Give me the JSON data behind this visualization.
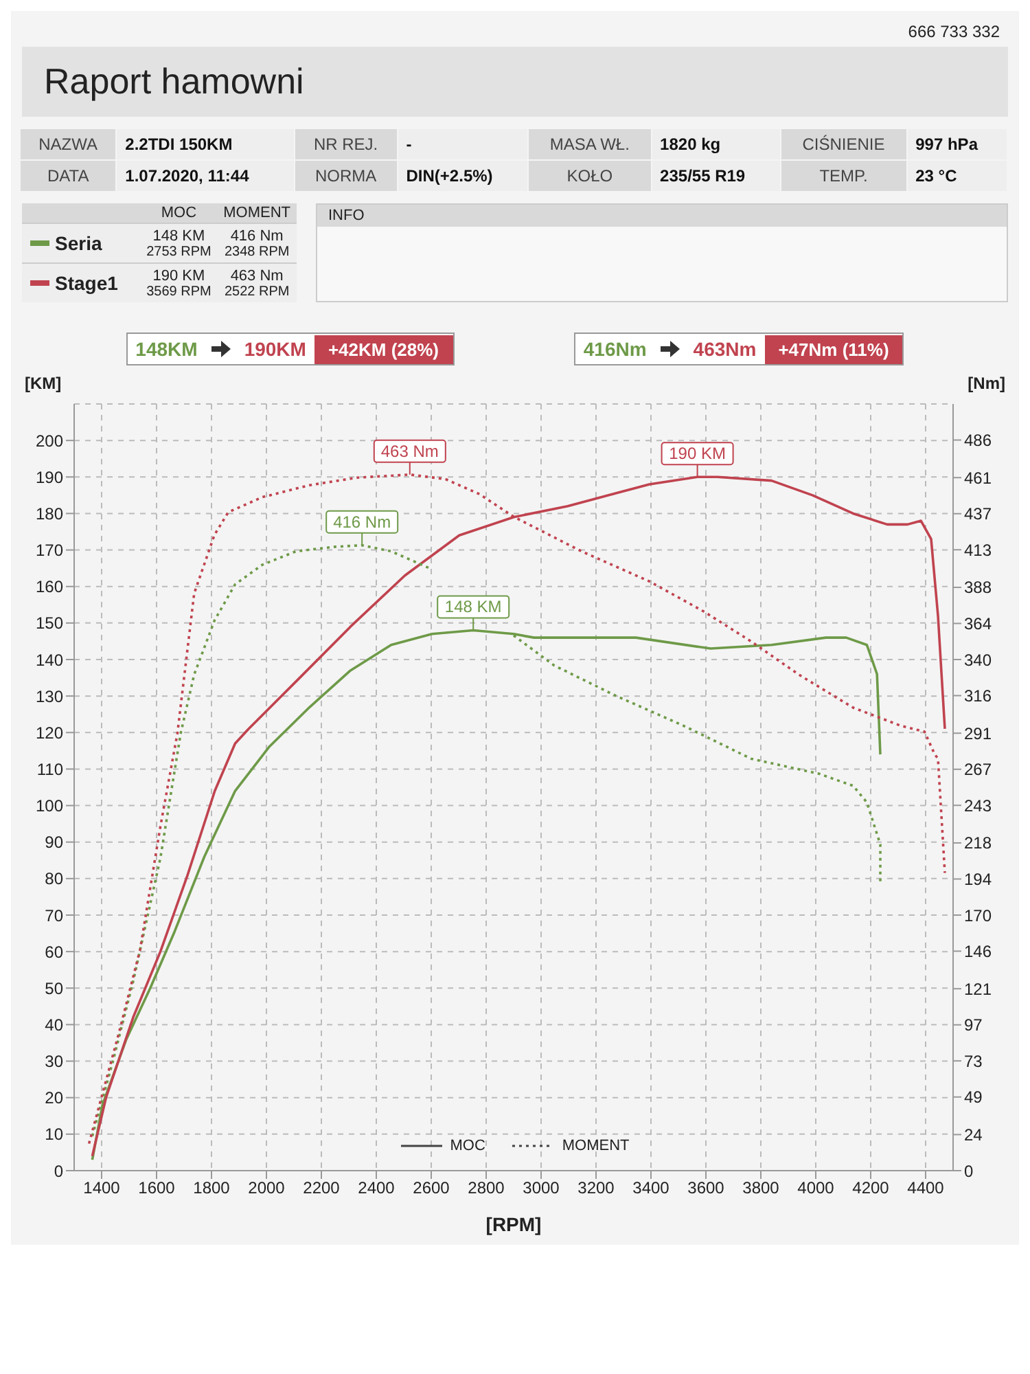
{
  "chart_data": {
    "type": "line",
    "title": "Raport hamowni",
    "xlabel": "[RPM]",
    "ylabel": "[KM]",
    "y2label": "[Nm]",
    "annotations": [
      "NAZWA",
      "2.2TDI 150KM",
      "NR REJ.",
      "-",
      "MASA WŁ.",
      "1820 kg",
      "CIŚNIENIE",
      "997 hPa",
      "DATA",
      "1.07.2020, 11:44",
      "NORMA",
      "DIN(+2.5%)",
      "KOŁO",
      "235/55 R19",
      "TEMP.",
      "23 °C",
      "MOC",
      "MOMENT",
      "148 KM",
      "2753 RPM",
      "416 Nm",
      "2348 RPM",
      "190 KM",
      "3569 RPM",
      "463 Nm",
      "2522 RPM",
      "INFO",
      "148KM",
      "190KM",
      "+42KM (28%)",
      "416Nm",
      "463Nm",
      "+47Nm (11%)",
      "666 733 332",
      "MOC",
      "MOMENT"
    ],
    "xlim": [
      1300,
      4500
    ],
    "xticks": [
      1400,
      1600,
      1800,
      2000,
      2200,
      2400,
      2600,
      2800,
      3000,
      3200,
      3400,
      3600,
      3800,
      4000,
      4200,
      4400
    ],
    "ylim": [
      0,
      210
    ],
    "yticks": [
      0,
      10,
      20,
      30,
      40,
      50,
      60,
      70,
      80,
      90,
      100,
      110,
      120,
      130,
      140,
      150,
      160,
      170,
      180,
      190,
      200
    ],
    "y2lim": [
      0,
      510
    ],
    "y2ticks": [
      0,
      24,
      49,
      73,
      97,
      121,
      146,
      170,
      194,
      218,
      243,
      267,
      291,
      316,
      340,
      364,
      388,
      413,
      437,
      461,
      486
    ],
    "grid": true,
    "legend": "top left",
    "marker": "none",
    "series": [
      {
        "name": "Seria",
        "color": "#6e9a48",
        "line_style": "solid",
        "x": [
          1366,
          1403,
          1490,
          1577,
          1663,
          1774,
          1886,
          2009,
          2158,
          2306,
          2454,
          2603,
          2753,
          2900,
          2974,
          3345,
          3617,
          3839,
          4037,
          4111,
          4186,
          4223,
          4235
        ],
        "values": [
          3,
          18,
          36,
          50,
          65,
          86,
          104,
          116,
          127,
          137,
          144,
          147,
          148,
          147,
          146,
          146,
          143,
          144,
          146,
          146,
          144,
          136,
          114
        ],
        "value_labels": [
          null,
          null,
          null,
          null,
          null,
          null,
          null,
          null,
          null,
          null,
          null,
          null,
          "148 KM",
          null,
          null,
          null,
          null,
          null,
          null,
          null,
          null,
          null,
          null
        ]
      },
      {
        "name": "Stage1",
        "color": "#c0434f",
        "line_style": "solid",
        "x": [
          1366,
          1416,
          1515,
          1614,
          1713,
          1812,
          1886,
          1935,
          2108,
          2306,
          2504,
          2702,
          2900,
          3097,
          3246,
          3394,
          3569,
          3642,
          3839,
          3988,
          4136,
          4260,
          4334,
          4383,
          4420,
          4445,
          4470
        ],
        "values": [
          4,
          20,
          42,
          60,
          81,
          104,
          117,
          121,
          134,
          149,
          163,
          174,
          179,
          182,
          185,
          188,
          190,
          190,
          189,
          185,
          180,
          177,
          177,
          178,
          173,
          152,
          121
        ],
        "value_labels": [
          null,
          null,
          null,
          null,
          null,
          null,
          null,
          null,
          null,
          null,
          null,
          null,
          null,
          null,
          null,
          null,
          "190 KM",
          null,
          null,
          null,
          null,
          null,
          null,
          null,
          null,
          null,
          null
        ]
      },
      {
        "color": "#6e9a48",
        "line_style": "dotted",
        "axis": "y2",
        "x": [
          1366,
          1440,
          1515,
          1614,
          1688,
          1737,
          1811,
          1886,
          1985,
          2108,
          2250,
          2348,
          2454,
          2603,
          2776,
          2900,
          3048,
          3271,
          3518,
          3765,
          4012,
          4136,
          4186,
          4235,
          4235
        ],
        "values": [
          23,
          72,
          126,
          208,
          291,
          330,
          366,
          390,
          403,
          412,
          415,
          416,
          412,
          400,
          null,
          356,
          336,
          316,
          296,
          274,
          264,
          256,
          245,
          217,
          192
        ],
        "value_labels": [
          null,
          null,
          null,
          null,
          null,
          null,
          null,
          null,
          null,
          null,
          null,
          "416 Nm",
          null,
          null,
          null,
          null,
          null,
          null,
          null,
          null,
          null,
          null,
          null,
          null,
          null
        ]
      },
      {
        "color": "#c0434f",
        "line_style": "dotted",
        "axis": "y2",
        "x": [
          1354,
          1391,
          1465,
          1540,
          1614,
          1676,
          1737,
          1811,
          1861,
          1985,
          2158,
          2331,
          2522,
          2652,
          2776,
          2900,
          3147,
          3394,
          3592,
          3765,
          3938,
          4136,
          4309,
          4396,
          4433,
          4445,
          4470
        ],
        "values": [
          18,
          43,
          93,
          147,
          229,
          291,
          384,
          423,
          438,
          448,
          456,
          461,
          463,
          460,
          450,
          435,
          412,
          392,
          372,
          352,
          330,
          308,
          296,
          292,
          277,
          274,
          198
        ],
        "value_labels": [
          null,
          null,
          null,
          null,
          null,
          null,
          null,
          null,
          null,
          null,
          null,
          null,
          "463 Nm",
          null,
          null,
          null,
          null,
          null,
          null,
          null,
          null,
          null,
          null,
          null,
          null,
          null,
          null
        ]
      }
    ]
  }
}
